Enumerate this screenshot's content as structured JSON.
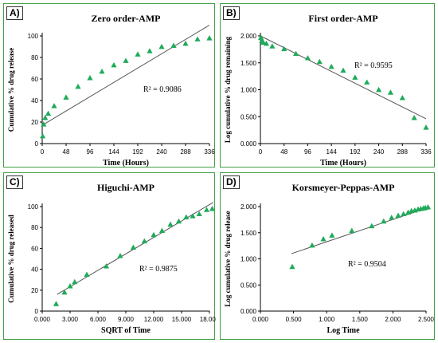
{
  "colors": {
    "marker": "#1faa59",
    "fit_line": "#555555",
    "panel_border": "#43a047",
    "axis": "#000000"
  },
  "chart_data": [
    {
      "panel_label": "A)",
      "type": "scatter",
      "title": "Zero order-AMP",
      "xlabel": "Time (Hours)",
      "ylabel": "Cumulative % drug release",
      "xlim": [
        0,
        336
      ],
      "ylim": [
        0,
        100
      ],
      "xticks": [
        "0",
        "48",
        "96",
        "144",
        "192",
        "240",
        "288",
        "336"
      ],
      "yticks": [
        "0",
        "20",
        "40",
        "60",
        "80",
        "100"
      ],
      "r2_label": "R² = 0.9086",
      "fit": {
        "x": [
          0,
          336
        ],
        "y": [
          17,
          110
        ]
      },
      "x": [
        1,
        3,
        6,
        12,
        24,
        48,
        72,
        96,
        120,
        144,
        168,
        192,
        216,
        240,
        264,
        288,
        312,
        336
      ],
      "y": [
        7,
        18,
        24,
        28,
        35,
        43,
        53,
        61,
        67,
        73,
        77,
        83,
        86,
        90,
        91,
        93,
        97,
        98
      ]
    },
    {
      "panel_label": "B)",
      "type": "scatter",
      "title": "First order-AMP",
      "xlabel": "Time (Hours)",
      "ylabel": "Log cumulative % drug remaining",
      "xlim": [
        0,
        336
      ],
      "ylim": [
        0,
        2
      ],
      "xticks": [
        "0",
        "48",
        "96",
        "144",
        "192",
        "240",
        "288",
        "336"
      ],
      "yticks": [
        "0.000",
        "0.500",
        "1.000",
        "1.500",
        "2.000"
      ],
      "r2_label": "R² = 0.9595",
      "fit": {
        "x": [
          0,
          336
        ],
        "y": [
          2.0,
          0.46
        ]
      },
      "x": [
        1,
        3,
        6,
        12,
        24,
        48,
        72,
        96,
        120,
        144,
        168,
        192,
        216,
        240,
        264,
        288,
        312,
        336
      ],
      "y": [
        1.97,
        1.91,
        1.88,
        1.86,
        1.81,
        1.76,
        1.67,
        1.59,
        1.52,
        1.43,
        1.36,
        1.23,
        1.14,
        1.0,
        0.95,
        0.85,
        0.48,
        0.3
      ]
    },
    {
      "panel_label": "C)",
      "type": "scatter",
      "title": "Higuchi-AMP",
      "xlabel": "SQRT of Time",
      "ylabel": "Cumulative % drug released",
      "xlim": [
        0,
        18
      ],
      "ylim": [
        0,
        100
      ],
      "xticks": [
        "0.000",
        "3.000",
        "6.000",
        "9.000",
        "12.000",
        "15.000",
        "18.000"
      ],
      "yticks": [
        "0",
        "20",
        "40",
        "60",
        "80",
        "100"
      ],
      "r2_label": "R² = 0.9875",
      "fit": {
        "x": [
          1.6,
          18.4
        ],
        "y": [
          16,
          104
        ]
      },
      "x": [
        1.5,
        2.4,
        3.0,
        3.5,
        4.8,
        6.9,
        8.4,
        9.8,
        11.0,
        12.0,
        12.9,
        13.8,
        14.7,
        15.5,
        16.2,
        16.9,
        17.7,
        18.3
      ],
      "y": [
        7,
        18,
        24,
        28,
        35,
        43,
        53,
        61,
        67,
        73,
        77,
        83,
        86,
        90,
        91,
        93,
        97,
        98
      ]
    },
    {
      "panel_label": "D)",
      "type": "scatter",
      "title": "Korsmeyer-Peppas-AMP",
      "xlabel": "Log Time",
      "ylabel": "Log cumulative % drug release",
      "xlim": [
        0,
        2.5
      ],
      "ylim": [
        0,
        2
      ],
      "xticks": [
        "0.000",
        "0.500",
        "1.000",
        "1.500",
        "2.000",
        "2.500"
      ],
      "yticks": [
        "0.000",
        "0.500",
        "1.000",
        "1.500",
        "2.000"
      ],
      "r2_label": "R² = 0.9504",
      "fit": {
        "x": [
          0.47,
          2.53
        ],
        "y": [
          1.1,
          1.98
        ]
      },
      "x": [
        0.48,
        0.78,
        0.95,
        1.08,
        1.38,
        1.68,
        1.86,
        1.98,
        2.08,
        2.16,
        2.23,
        2.28,
        2.33,
        2.38,
        2.42,
        2.46,
        2.49,
        2.53
      ],
      "y": [
        0.85,
        1.26,
        1.38,
        1.45,
        1.54,
        1.63,
        1.72,
        1.79,
        1.83,
        1.86,
        1.89,
        1.92,
        1.93,
        1.95,
        1.96,
        1.97,
        1.98,
        1.99
      ]
    }
  ]
}
